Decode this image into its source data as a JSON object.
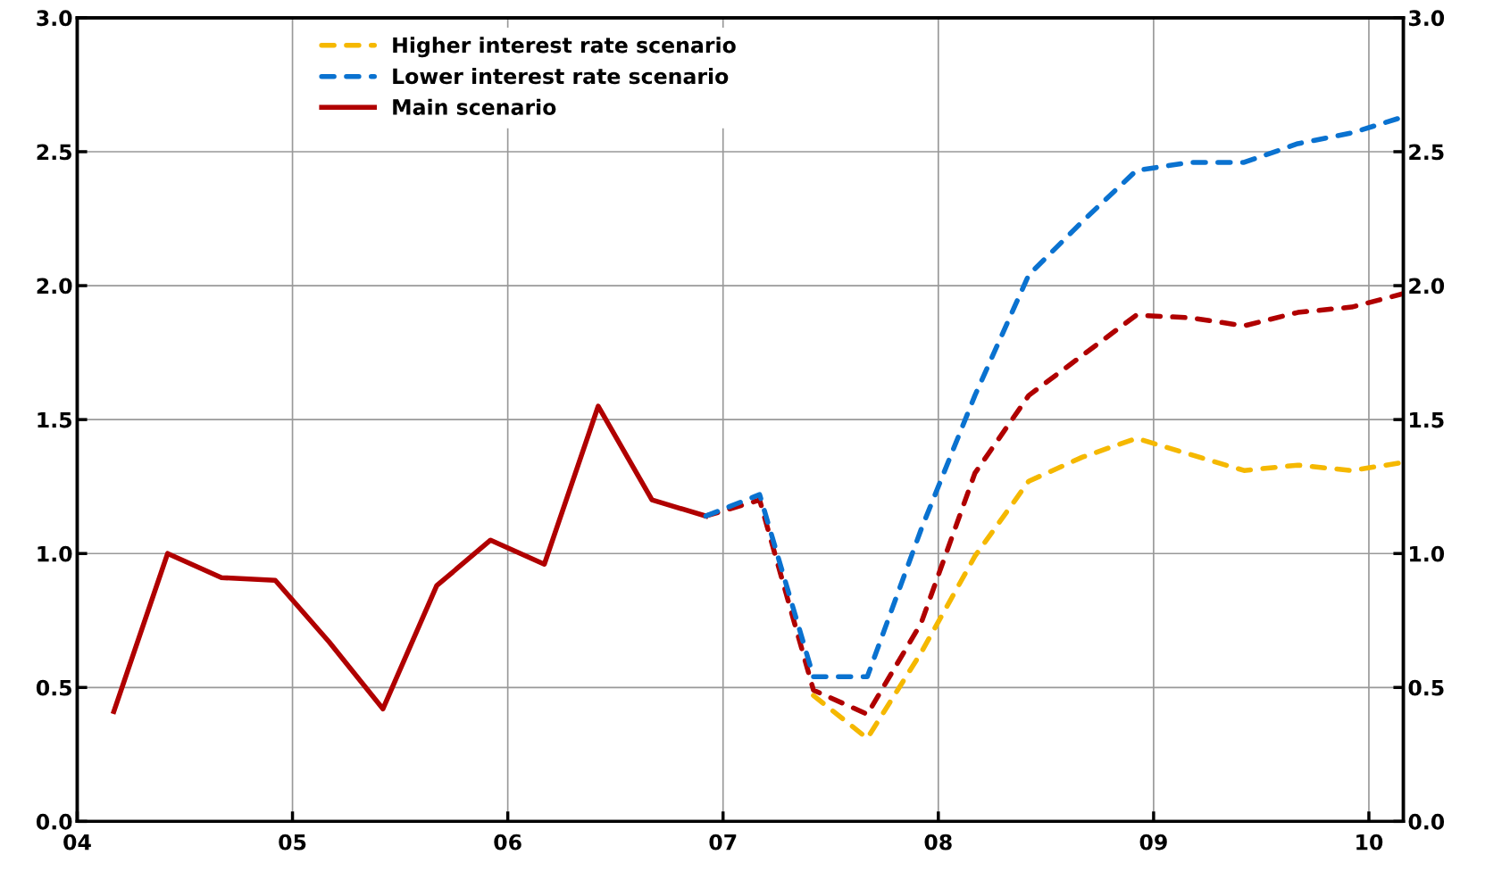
{
  "chart_data": {
    "type": "line",
    "xlim": [
      2004,
      2010.16
    ],
    "xticks": [
      {
        "value": 2004,
        "label": "04"
      },
      {
        "value": 2005,
        "label": "05"
      },
      {
        "value": 2006,
        "label": "06"
      },
      {
        "value": 2007,
        "label": "07"
      },
      {
        "value": 2008,
        "label": "08"
      },
      {
        "value": 2009,
        "label": "09"
      },
      {
        "value": 2010,
        "label": "10"
      }
    ],
    "ylim": [
      0,
      3
    ],
    "yticks": [
      {
        "value": 0,
        "label": "0.0"
      },
      {
        "value": 0.5,
        "label": "0.5"
      },
      {
        "value": 1,
        "label": "1.0"
      },
      {
        "value": 1.5,
        "label": "1.5"
      },
      {
        "value": 2,
        "label": "2.0"
      },
      {
        "value": 2.5,
        "label": "2.5"
      },
      {
        "value": 3,
        "label": "3.0"
      }
    ],
    "y2lim": [
      0,
      3
    ],
    "y2ticks": [
      {
        "value": 0,
        "label": "0.0"
      },
      {
        "value": 0.5,
        "label": "0.5"
      },
      {
        "value": 1,
        "label": "1.0"
      },
      {
        "value": 1.5,
        "label": "1.5"
      },
      {
        "value": 2,
        "label": "2.0"
      },
      {
        "value": 2.5,
        "label": "2.5"
      },
      {
        "value": 3,
        "label": "3.0"
      }
    ],
    "grid": true,
    "legend": "top left",
    "series": [
      {
        "name": "Higher interest rate scenario",
        "color": "#f5b800",
        "line_style": "dashed",
        "x": [
          2007.42,
          2007.67,
          2007.92,
          2008.17,
          2008.42,
          2008.67,
          2008.92,
          2009.17,
          2009.42,
          2009.67,
          2009.92,
          2010.16
        ],
        "values": [
          0.47,
          0.31,
          0.63,
          0.99,
          1.27,
          1.36,
          1.43,
          1.37,
          1.31,
          1.33,
          1.31,
          1.34
        ]
      },
      {
        "name": "Lower interest rate scenario",
        "color": "#0a72d0",
        "line_style": "dashed",
        "x": [
          2006.92,
          2007.17,
          2007.42,
          2007.67,
          2007.92,
          2008.17,
          2008.42,
          2008.67,
          2008.92,
          2009.17,
          2009.42,
          2009.67,
          2009.92,
          2010.16
        ],
        "values": [
          1.14,
          1.22,
          0.54,
          0.54,
          1.09,
          1.59,
          2.04,
          2.24,
          2.43,
          2.46,
          2.46,
          2.53,
          2.57,
          2.63
        ]
      },
      {
        "name": "Main scenario",
        "color": "#b00000",
        "line_style": "solid",
        "x": [
          2004.17,
          2004.42,
          2004.67,
          2004.92,
          2005.17,
          2005.42,
          2005.67,
          2005.92,
          2006.17,
          2006.42,
          2006.67,
          2006.92
        ],
        "values": [
          0.41,
          1.0,
          0.91,
          0.9,
          0.67,
          0.42,
          0.88,
          1.05,
          0.96,
          1.55,
          1.2,
          1.14
        ]
      },
      {
        "color": "#b00000",
        "line_style": "dashed",
        "x": [
          2006.92,
          2007.17,
          2007.42,
          2007.67,
          2007.92,
          2008.17,
          2008.42,
          2008.67,
          2008.92,
          2009.17,
          2009.42,
          2009.67,
          2009.92,
          2010.16
        ],
        "values": [
          1.14,
          1.2,
          0.49,
          0.4,
          0.74,
          1.3,
          1.59,
          1.74,
          1.89,
          1.88,
          1.85,
          1.9,
          1.92,
          1.97
        ]
      }
    ]
  }
}
